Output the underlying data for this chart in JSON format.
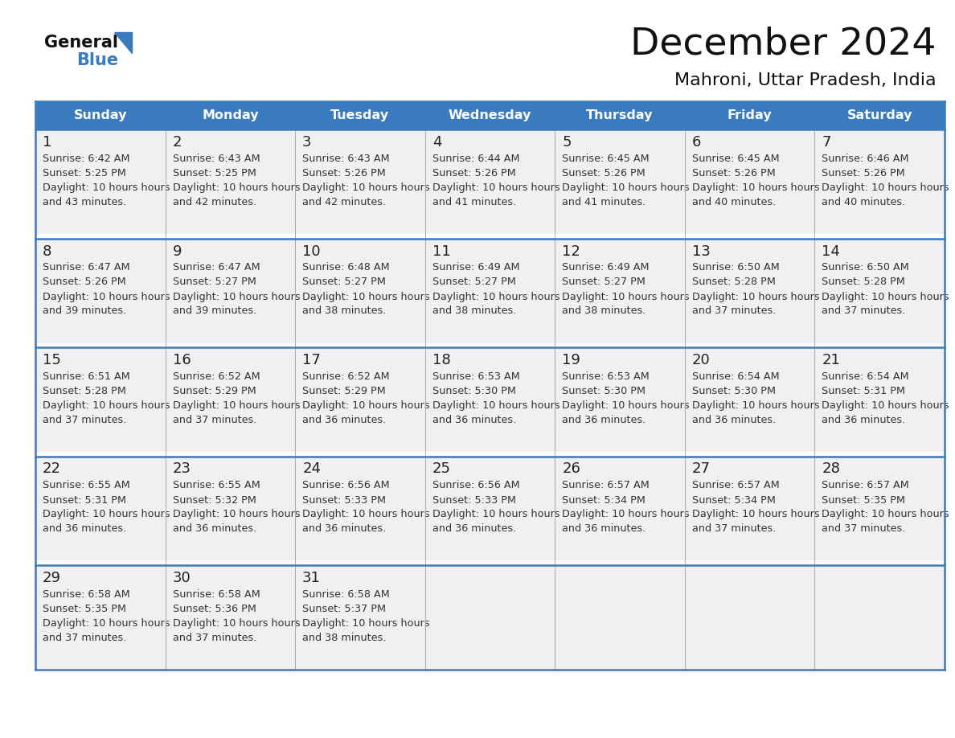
{
  "title": "December 2024",
  "subtitle": "Mahroni, Uttar Pradesh, India",
  "header_bg": "#3a7abf",
  "header_text": "#ffffff",
  "row_bg": "#f0f0f0",
  "border_color": "#3a7abf",
  "days_of_week": [
    "Sunday",
    "Monday",
    "Tuesday",
    "Wednesday",
    "Thursday",
    "Friday",
    "Saturday"
  ],
  "calendar_data": [
    [
      {
        "day": 1,
        "sunrise": "6:42 AM",
        "sunset": "5:25 PM",
        "daylight": "10 hours and 43 minutes."
      },
      {
        "day": 2,
        "sunrise": "6:43 AM",
        "sunset": "5:25 PM",
        "daylight": "10 hours and 42 minutes."
      },
      {
        "day": 3,
        "sunrise": "6:43 AM",
        "sunset": "5:26 PM",
        "daylight": "10 hours and 42 minutes."
      },
      {
        "day": 4,
        "sunrise": "6:44 AM",
        "sunset": "5:26 PM",
        "daylight": "10 hours and 41 minutes."
      },
      {
        "day": 5,
        "sunrise": "6:45 AM",
        "sunset": "5:26 PM",
        "daylight": "10 hours and 41 minutes."
      },
      {
        "day": 6,
        "sunrise": "6:45 AM",
        "sunset": "5:26 PM",
        "daylight": "10 hours and 40 minutes."
      },
      {
        "day": 7,
        "sunrise": "6:46 AM",
        "sunset": "5:26 PM",
        "daylight": "10 hours and 40 minutes."
      }
    ],
    [
      {
        "day": 8,
        "sunrise": "6:47 AM",
        "sunset": "5:26 PM",
        "daylight": "10 hours and 39 minutes."
      },
      {
        "day": 9,
        "sunrise": "6:47 AM",
        "sunset": "5:27 PM",
        "daylight": "10 hours and 39 minutes."
      },
      {
        "day": 10,
        "sunrise": "6:48 AM",
        "sunset": "5:27 PM",
        "daylight": "10 hours and 38 minutes."
      },
      {
        "day": 11,
        "sunrise": "6:49 AM",
        "sunset": "5:27 PM",
        "daylight": "10 hours and 38 minutes."
      },
      {
        "day": 12,
        "sunrise": "6:49 AM",
        "sunset": "5:27 PM",
        "daylight": "10 hours and 38 minutes."
      },
      {
        "day": 13,
        "sunrise": "6:50 AM",
        "sunset": "5:28 PM",
        "daylight": "10 hours and 37 minutes."
      },
      {
        "day": 14,
        "sunrise": "6:50 AM",
        "sunset": "5:28 PM",
        "daylight": "10 hours and 37 minutes."
      }
    ],
    [
      {
        "day": 15,
        "sunrise": "6:51 AM",
        "sunset": "5:28 PM",
        "daylight": "10 hours and 37 minutes."
      },
      {
        "day": 16,
        "sunrise": "6:52 AM",
        "sunset": "5:29 PM",
        "daylight": "10 hours and 37 minutes."
      },
      {
        "day": 17,
        "sunrise": "6:52 AM",
        "sunset": "5:29 PM",
        "daylight": "10 hours and 36 minutes."
      },
      {
        "day": 18,
        "sunrise": "6:53 AM",
        "sunset": "5:30 PM",
        "daylight": "10 hours and 36 minutes."
      },
      {
        "day": 19,
        "sunrise": "6:53 AM",
        "sunset": "5:30 PM",
        "daylight": "10 hours and 36 minutes."
      },
      {
        "day": 20,
        "sunrise": "6:54 AM",
        "sunset": "5:30 PM",
        "daylight": "10 hours and 36 minutes."
      },
      {
        "day": 21,
        "sunrise": "6:54 AM",
        "sunset": "5:31 PM",
        "daylight": "10 hours and 36 minutes."
      }
    ],
    [
      {
        "day": 22,
        "sunrise": "6:55 AM",
        "sunset": "5:31 PM",
        "daylight": "10 hours and 36 minutes."
      },
      {
        "day": 23,
        "sunrise": "6:55 AM",
        "sunset": "5:32 PM",
        "daylight": "10 hours and 36 minutes."
      },
      {
        "day": 24,
        "sunrise": "6:56 AM",
        "sunset": "5:33 PM",
        "daylight": "10 hours and 36 minutes."
      },
      {
        "day": 25,
        "sunrise": "6:56 AM",
        "sunset": "5:33 PM",
        "daylight": "10 hours and 36 minutes."
      },
      {
        "day": 26,
        "sunrise": "6:57 AM",
        "sunset": "5:34 PM",
        "daylight": "10 hours and 36 minutes."
      },
      {
        "day": 27,
        "sunrise": "6:57 AM",
        "sunset": "5:34 PM",
        "daylight": "10 hours and 37 minutes."
      },
      {
        "day": 28,
        "sunrise": "6:57 AM",
        "sunset": "5:35 PM",
        "daylight": "10 hours and 37 minutes."
      }
    ],
    [
      {
        "day": 29,
        "sunrise": "6:58 AM",
        "sunset": "5:35 PM",
        "daylight": "10 hours and 37 minutes."
      },
      {
        "day": 30,
        "sunrise": "6:58 AM",
        "sunset": "5:36 PM",
        "daylight": "10 hours and 37 minutes."
      },
      {
        "day": 31,
        "sunrise": "6:58 AM",
        "sunset": "5:37 PM",
        "daylight": "10 hours and 38 minutes."
      },
      null,
      null,
      null,
      null
    ]
  ],
  "logo_general_color": "#111111",
  "logo_blue_color": "#3a7abf",
  "logo_triangle_color": "#3a7abf"
}
